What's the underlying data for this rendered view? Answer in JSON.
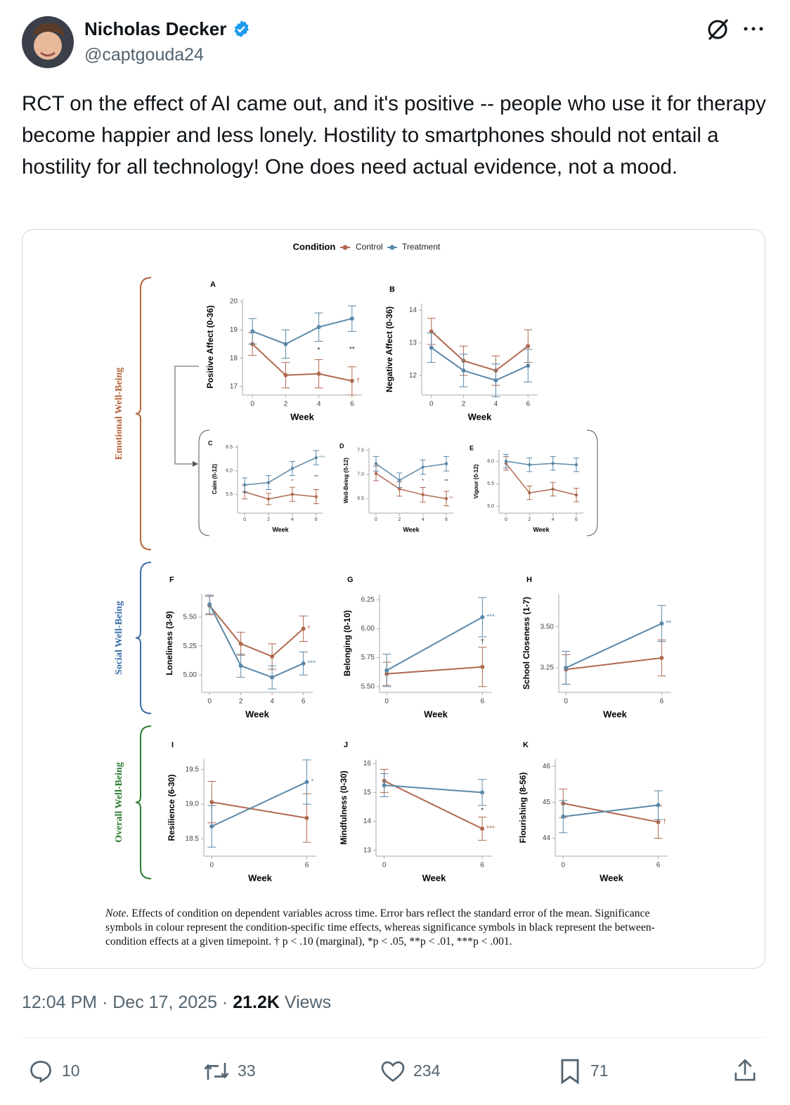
{
  "tweet": {
    "author": "Nicholas Decker",
    "handle": "@captgouda24",
    "text": "RCT on the effect of AI came out, and it's positive -- people who use it for therapy become happier and less lonely. Hostility to smartphones should not entail a hostility for all technology! One does need actual evidence, not a mood.",
    "time": "12:04 PM",
    "separator": "·",
    "date": "Dec 17, 2025",
    "views": "21.2K",
    "views_label": "Views",
    "replies": 10,
    "reposts": 33,
    "likes": 234,
    "bookmarks": 71
  },
  "figure": {
    "legend_title": "Condition",
    "groups": [
      {
        "label": "Emotional Well-Being",
        "color": "#b5643a"
      },
      {
        "label": "Social Well-Being",
        "color": "#3a6fa8"
      },
      {
        "label": "Overall Well-Being",
        "color": "#2e7d32"
      }
    ],
    "note_label": "Note.",
    "note": "Effects of condition on dependent variables across time. Error bars reflect the standard error of the mean. Significance symbols in colour represent the condition-specific time effects, whereas significance symbols in black represent the between-condition effects at a given timepoint. † p < .10 (marginal), *p < .05, **p < .01, ***p < .001."
  },
  "chart_data": [
    {
      "type": "line",
      "panel": "A",
      "ylabel": "Positive Affect (0-36)",
      "xlabel": "Week",
      "x": [
        0,
        2,
        4,
        6
      ],
      "xlim": [
        -0.6,
        6.6
      ],
      "xticks": [
        0,
        2,
        4,
        6
      ],
      "ylim": [
        16.7,
        20.1
      ],
      "yticks": [
        17,
        18,
        19,
        20
      ],
      "series": [
        {
          "name": "Control",
          "color": "#b0694f",
          "values": [
            18.5,
            17.4,
            17.45,
            17.2
          ],
          "errors": [
            0.4,
            0.45,
            0.5,
            0.5
          ],
          "sig_labels": [
            null,
            null,
            null,
            "†"
          ]
        },
        {
          "name": "Treatment",
          "color": "#5a88a8",
          "values": [
            18.95,
            18.5,
            19.1,
            19.4
          ],
          "errors": [
            0.45,
            0.5,
            0.5,
            0.45
          ],
          "sig_labels": [
            null,
            null,
            null,
            null
          ]
        }
      ],
      "between_labels": [
        null,
        null,
        "*",
        "**"
      ]
    },
    {
      "type": "line",
      "panel": "B",
      "ylabel": "Negative Affect (0-36)",
      "xlabel": "Week",
      "x": [
        0,
        2,
        4,
        6
      ],
      "xlim": [
        -0.6,
        6.6
      ],
      "xticks": [
        0,
        2,
        4,
        6
      ],
      "ylim": [
        11.4,
        14.2
      ],
      "yticks": [
        12,
        13,
        14
      ],
      "series": [
        {
          "name": "Control",
          "color": "#b0694f",
          "values": [
            13.35,
            12.45,
            12.15,
            12.9
          ],
          "errors": [
            0.4,
            0.45,
            0.45,
            0.5
          ],
          "sig_labels": [
            null,
            null,
            null,
            null
          ]
        },
        {
          "name": "Treatment",
          "color": "#5a88a8",
          "values": [
            12.85,
            12.15,
            11.85,
            12.3
          ],
          "errors": [
            0.45,
            0.5,
            0.5,
            0.5
          ],
          "sig_labels": [
            null,
            null,
            null,
            null
          ]
        }
      ],
      "between_labels": [
        null,
        null,
        null,
        null
      ]
    },
    {
      "type": "line",
      "panel": "C",
      "ylabel": "Calm (0-12)",
      "xlabel": "Week",
      "x": [
        0,
        2,
        4,
        6
      ],
      "xlim": [
        -0.6,
        6.6
      ],
      "xticks": [
        0,
        2,
        4,
        6
      ],
      "ylim": [
        5.1,
        6.55
      ],
      "yticks": [
        5.5,
        {
          "value": 6,
          "label": "6.0"
        },
        6.5
      ],
      "series": [
        {
          "name": "Control",
          "color": "#b0694f",
          "values": [
            5.55,
            5.4,
            5.5,
            5.45
          ],
          "errors": [
            0.15,
            0.12,
            0.15,
            0.15
          ],
          "sig_labels": [
            null,
            null,
            null,
            null
          ]
        },
        {
          "name": "Treatment",
          "color": "#5a88a8",
          "values": [
            5.7,
            5.75,
            6.05,
            6.28
          ],
          "errors": [
            0.15,
            0.15,
            0.15,
            0.15
          ],
          "sig_labels": [
            null,
            null,
            null,
            "***"
          ]
        }
      ],
      "between_labels": [
        null,
        null,
        "*",
        "**"
      ]
    },
    {
      "type": "line",
      "panel": "D",
      "ylabel": "Well-Being (0-12)",
      "xlabel": "Week",
      "x": [
        0,
        2,
        4,
        6
      ],
      "xlim": [
        -0.6,
        6.6
      ],
      "xticks": [
        0,
        2,
        4,
        6
      ],
      "ylim": [
        6.2,
        7.55
      ],
      "yticks": [
        6.5,
        {
          "value": 7,
          "label": "7.0"
        },
        7.5
      ],
      "series": [
        {
          "name": "Control",
          "color": "#b0694f",
          "values": [
            7.02,
            6.7,
            6.58,
            6.5
          ],
          "errors": [
            0.15,
            0.15,
            0.15,
            0.15
          ],
          "sig_labels": [
            null,
            null,
            null,
            "**"
          ]
        },
        {
          "name": "Treatment",
          "color": "#5a88a8",
          "values": [
            7.22,
            6.88,
            7.15,
            7.22
          ],
          "errors": [
            0.15,
            0.15,
            0.15,
            0.15
          ],
          "sig_labels": [
            null,
            null,
            null,
            null
          ]
        }
      ],
      "between_labels": [
        null,
        null,
        "*",
        "**"
      ]
    },
    {
      "type": "line",
      "panel": "E",
      "ylabel": "Vigour (0-12)",
      "xlabel": "Week",
      "x": [
        0,
        2,
        4,
        6
      ],
      "xlim": [
        -0.6,
        6.6
      ],
      "xticks": [
        0,
        2,
        4,
        6
      ],
      "ylim": [
        4.85,
        6.25
      ],
      "yticks": [
        {
          "value": 5,
          "label": "5.0"
        },
        5.5,
        {
          "value": 6,
          "label": "6.0"
        }
      ],
      "series": [
        {
          "name": "Control",
          "color": "#b0694f",
          "values": [
            5.95,
            5.3,
            5.38,
            5.25
          ],
          "errors": [
            0.15,
            0.15,
            0.15,
            0.15
          ],
          "sig_labels": [
            null,
            null,
            null,
            null
          ]
        },
        {
          "name": "Treatment",
          "color": "#5a88a8",
          "values": [
            6.0,
            5.92,
            5.95,
            5.92
          ],
          "errors": [
            0.15,
            0.15,
            0.15,
            0.15
          ],
          "sig_labels": [
            null,
            null,
            null,
            null
          ]
        }
      ],
      "between_labels": [
        null,
        null,
        null,
        null
      ]
    },
    {
      "type": "line",
      "panel": "F",
      "ylabel": "Loneliness (3-9)",
      "xlabel": "Week",
      "x": [
        0,
        2,
        4,
        6
      ],
      "xlim": [
        -0.5,
        6.6
      ],
      "xticks": [
        0,
        2,
        4,
        6
      ],
      "ylim": [
        4.85,
        5.7
      ],
      "yticks": [
        {
          "value": 5,
          "label": "5.00"
        },
        5.25,
        {
          "value": 5.5,
          "label": "5.50"
        }
      ],
      "series": [
        {
          "name": "Control",
          "color": "#b0694f",
          "values": [
            5.6,
            5.27,
            5.16,
            5.4
          ],
          "errors": [
            0.08,
            0.1,
            0.11,
            0.11
          ],
          "sig_labels": [
            null,
            null,
            null,
            "*"
          ]
        },
        {
          "name": "Treatment",
          "color": "#5a88a8",
          "values": [
            5.61,
            5.08,
            4.98,
            5.1
          ],
          "errors": [
            0.08,
            0.1,
            0.1,
            0.1
          ],
          "sig_labels": [
            null,
            null,
            null,
            "***"
          ]
        }
      ],
      "between_labels": [
        null,
        null,
        null,
        null
      ]
    },
    {
      "type": "line",
      "panel": "G",
      "ylabel": "Belonging (0-10)",
      "xlabel": "Week",
      "x": [
        0,
        6
      ],
      "xlim": [
        -0.45,
        6.6
      ],
      "xticks": [
        0,
        6
      ],
      "ylim": [
        5.45,
        6.3
      ],
      "yticks": [
        {
          "value": 5.5,
          "label": "5.50"
        },
        5.75,
        {
          "value": 6,
          "label": "6.00"
        },
        6.25
      ],
      "series": [
        {
          "name": "Control",
          "color": "#b0694f",
          "values": [
            5.61,
            5.67
          ],
          "errors": [
            0.1,
            0.17
          ],
          "sig_labels": [
            null,
            null
          ]
        },
        {
          "name": "Treatment",
          "color": "#5a88a8",
          "values": [
            5.64,
            6.1
          ],
          "errors": [
            0.14,
            0.17
          ],
          "sig_labels": [
            null,
            "***"
          ]
        }
      ],
      "between_labels": [
        null,
        "†"
      ]
    },
    {
      "type": "line",
      "panel": "H",
      "ylabel": "School Closeness (1-7)",
      "xlabel": "Week",
      "x": [
        0,
        6
      ],
      "xlim": [
        -0.45,
        6.6
      ],
      "xticks": [
        0,
        6
      ],
      "ylim": [
        3.1,
        3.7
      ],
      "yticks": [
        3.25,
        {
          "value": 3.5,
          "label": "3.50"
        }
      ],
      "series": [
        {
          "name": "Control",
          "color": "#b0694f",
          "values": [
            3.24,
            3.31
          ],
          "errors": [
            0.09,
            0.11
          ],
          "sig_labels": [
            null,
            null
          ]
        },
        {
          "name": "Treatment",
          "color": "#5a88a8",
          "values": [
            3.25,
            3.52
          ],
          "errors": [
            0.1,
            0.11
          ],
          "sig_labels": [
            null,
            "**"
          ]
        }
      ],
      "between_labels": [
        null,
        null
      ]
    },
    {
      "type": "line",
      "panel": "I",
      "ylabel": "Resilience (6-30)",
      "xlabel": "Week",
      "x": [
        0,
        6
      ],
      "xlim": [
        -0.5,
        6.6
      ],
      "xticks": [
        0,
        6
      ],
      "ylim": [
        18.25,
        19.65
      ],
      "yticks": [
        18.5,
        {
          "value": 19,
          "label": "19.0"
        },
        19.5
      ],
      "series": [
        {
          "name": "Control",
          "color": "#b0694f",
          "values": [
            19.03,
            18.8
          ],
          "errors": [
            0.3,
            0.35
          ],
          "sig_labels": [
            null,
            null
          ]
        },
        {
          "name": "Treatment",
          "color": "#5a88a8",
          "values": [
            18.68,
            19.32
          ],
          "errors": [
            0.3,
            0.32
          ],
          "sig_labels": [
            null,
            "*"
          ]
        }
      ],
      "between_labels": [
        null,
        null
      ]
    },
    {
      "type": "line",
      "panel": "J",
      "ylabel": "Mindfulness (0-30)",
      "xlabel": "Week",
      "x": [
        0,
        6
      ],
      "xlim": [
        -0.5,
        6.6
      ],
      "xticks": [
        0,
        6
      ],
      "ylim": [
        12.8,
        16.15
      ],
      "yticks": [
        13,
        14,
        15,
        16
      ],
      "series": [
        {
          "name": "Control",
          "color": "#b0694f",
          "values": [
            15.4,
            13.75
          ],
          "errors": [
            0.4,
            0.4
          ],
          "sig_labels": [
            null,
            "***"
          ]
        },
        {
          "name": "Treatment",
          "color": "#5a88a8",
          "values": [
            15.25,
            15.0
          ],
          "errors": [
            0.4,
            0.45
          ],
          "sig_labels": [
            null,
            null
          ]
        }
      ],
      "between_labels": [
        null,
        "*"
      ]
    },
    {
      "type": "line",
      "panel": "K",
      "ylabel": "Flourishing (8-56)",
      "xlabel": "Week",
      "x": [
        0,
        6
      ],
      "xlim": [
        -0.5,
        6.6
      ],
      "xticks": [
        0,
        6
      ],
      "ylim": [
        43.5,
        46.2
      ],
      "yticks": [
        44,
        45,
        46
      ],
      "series": [
        {
          "name": "Control",
          "color": "#b0694f",
          "values": [
            44.97,
            44.45
          ],
          "errors": [
            0.4,
            0.45
          ],
          "sig_labels": [
            null,
            "†"
          ]
        },
        {
          "name": "Treatment",
          "color": "#5a88a8",
          "values": [
            44.6,
            44.92
          ],
          "errors": [
            0.45,
            0.4
          ],
          "sig_labels": [
            null,
            null
          ]
        }
      ],
      "between_labels": [
        null,
        null
      ]
    }
  ]
}
